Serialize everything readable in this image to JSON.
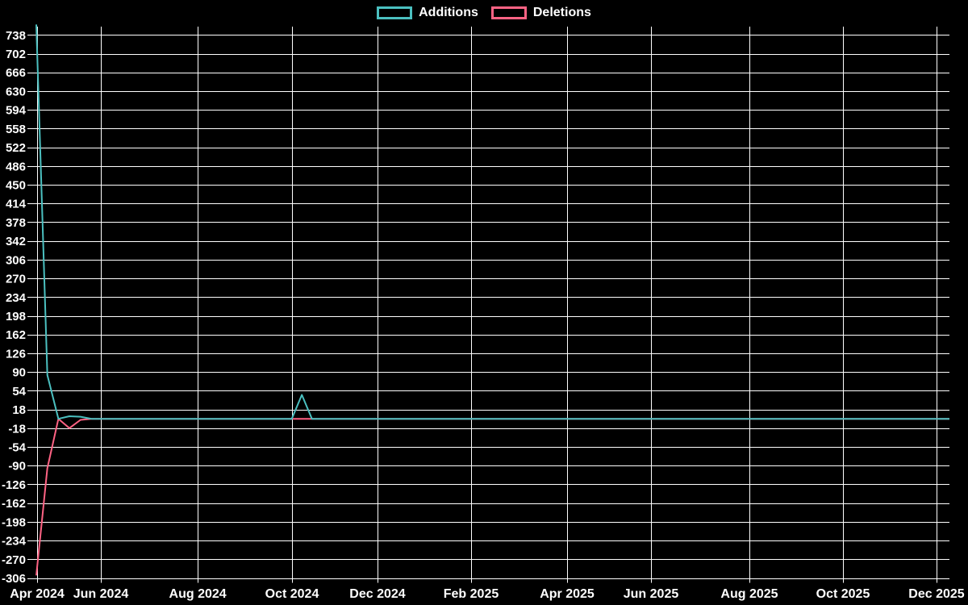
{
  "page": {
    "background_color": "#000000"
  },
  "chart_data": {
    "type": "line",
    "title": "",
    "legend_position": "top",
    "grid": true,
    "background_color": "#000000",
    "grid_color": "#ffffff",
    "text_color": "#ffffff",
    "x_axis": {
      "ticks": [
        {
          "label": "Apr 2024",
          "pos": 0.0035
        },
        {
          "label": "Jun 2024",
          "pos": 0.0731
        },
        {
          "label": "Aug 2024",
          "pos": 0.1789
        },
        {
          "label": "Oct 2024",
          "pos": 0.2819
        },
        {
          "label": "Dec 2024",
          "pos": 0.3753
        },
        {
          "label": "Feb 2025",
          "pos": 0.4775
        },
        {
          "label": "Apr 2025",
          "pos": 0.5824
        },
        {
          "label": "Jun 2025",
          "pos": 0.674
        },
        {
          "label": "Aug 2025",
          "pos": 0.7815
        },
        {
          "label": "Oct 2025",
          "pos": 0.8837
        },
        {
          "label": "Dec 2025",
          "pos": 0.9859
        }
      ]
    },
    "y_axis": {
      "min": -306,
      "max": 753,
      "step": 36,
      "ticks": [
        738,
        702,
        666,
        630,
        594,
        558,
        522,
        486,
        450,
        414,
        378,
        342,
        306,
        270,
        234,
        198,
        162,
        126,
        90,
        54,
        18,
        -18,
        -54,
        -90,
        -126,
        -162,
        -198,
        -234,
        -270,
        -306
      ]
    },
    "series": [
      {
        "name": "Additions",
        "color": "#4bc0c0",
        "points": [
          [
            0.0026,
            758
          ],
          [
            0.0147,
            84
          ],
          [
            0.0268,
            0
          ],
          [
            0.0388,
            5
          ],
          [
            0.0509,
            4
          ],
          [
            0.0629,
            0
          ],
          [
            0.2817,
            0
          ],
          [
            0.2927,
            46
          ],
          [
            0.3037,
            0
          ],
          [
            1.0,
            0
          ]
        ]
      },
      {
        "name": "Deletions",
        "color": "#ff6384",
        "points": [
          [
            0.0026,
            -301
          ],
          [
            0.0147,
            -95
          ],
          [
            0.0268,
            0
          ],
          [
            0.0388,
            -18
          ],
          [
            0.0509,
            -2
          ],
          [
            0.0629,
            0
          ],
          [
            1.0,
            0
          ]
        ]
      }
    ]
  }
}
